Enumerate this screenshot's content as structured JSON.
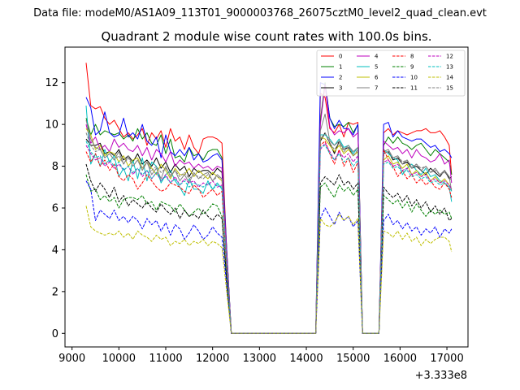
{
  "header": {
    "datafile": "Data file: modeM0/AS1A09_113T01_9000003768_26075cztM0_level2_quad_clean.evt"
  },
  "chart_data": {
    "type": "line",
    "title": "Quadrant 2 module wise count rates with 100.0s bins.",
    "xlabel": "",
    "ylabel": "",
    "x_offset_label": "+3.333e8",
    "xlim": [
      8850,
      17450
    ],
    "ylim": [
      -0.65,
      13.7
    ],
    "x_ticks": [
      9000,
      10000,
      11000,
      12000,
      13000,
      14000,
      15000,
      16000,
      17000
    ],
    "x_tick_labels": [
      "9000",
      "10000",
      "11000",
      "12000",
      "13000",
      "14000",
      "15000",
      "16000",
      "17000"
    ],
    "y_ticks": [
      0,
      2,
      4,
      6,
      8,
      10,
      12
    ],
    "y_tick_labels": [
      "0",
      "2",
      "4",
      "6",
      "8",
      "10",
      "12"
    ],
    "grid": false,
    "legend_position": "top-right",
    "x": [
      9300,
      9400,
      9500,
      9600,
      9700,
      9800,
      9900,
      10000,
      10100,
      10200,
      10300,
      10400,
      10500,
      10600,
      10700,
      10800,
      10900,
      11000,
      11100,
      11200,
      11300,
      11400,
      11500,
      11600,
      11700,
      11800,
      11900,
      12000,
      12100,
      12200,
      12300,
      12400,
      14200,
      14300,
      14400,
      14500,
      14600,
      14700,
      14800,
      14900,
      15000,
      15100,
      15200,
      15550,
      15650,
      15750,
      15850,
      15950,
      16050,
      16150,
      16250,
      16350,
      16450,
      16550,
      16650,
      16750,
      16850,
      16950,
      17050,
      17100
    ],
    "series": [
      {
        "name": "0",
        "color": "#ff0000",
        "dash": "solid",
        "values": [
          12.95,
          10.9,
          10.75,
          10.85,
          10.3,
          10.0,
          10.2,
          9.8,
          9.4,
          9.6,
          9.3,
          9.5,
          9.8,
          9.0,
          9.6,
          9.3,
          9.7,
          8.9,
          9.8,
          9.2,
          9.4,
          8.8,
          9.5,
          8.9,
          8.6,
          9.3,
          9.4,
          9.4,
          9.3,
          9.1,
          4.0,
          0.0,
          0.0,
          11.5,
          11.3,
          9.8,
          9.6,
          10.0,
          9.4,
          10.1,
          10.0,
          10.1,
          0.0,
          0.0,
          9.6,
          9.8,
          9.5,
          9.7,
          9.6,
          9.5,
          9.6,
          9.7,
          9.7,
          9.8,
          9.6,
          9.6,
          9.7,
          9.4,
          9.0,
          7.6
        ]
      },
      {
        "name": "1",
        "color": "#008000",
        "dash": "solid",
        "values": [
          10.3,
          9.5,
          10.0,
          9.5,
          9.7,
          9.6,
          9.5,
          9.6,
          9.3,
          9.5,
          9.2,
          9.8,
          9.3,
          9.6,
          9.1,
          9.0,
          9.5,
          8.6,
          9.3,
          8.4,
          8.5,
          8.2,
          8.9,
          8.5,
          8.6,
          8.3,
          8.7,
          8.8,
          8.8,
          8.4,
          4.0,
          0.0,
          0.0,
          10.2,
          12.0,
          10.3,
          9.9,
          10.0,
          9.9,
          10.1,
          9.6,
          10.0,
          0.0,
          0.0,
          9.0,
          9.4,
          9.1,
          9.4,
          9.1,
          9.0,
          8.8,
          9.0,
          9.1,
          8.8,
          8.5,
          8.8,
          8.6,
          8.4,
          8.2,
          7.6
        ]
      },
      {
        "name": "2",
        "color": "#0000ff",
        "dash": "solid",
        "values": [
          11.3,
          10.8,
          9.5,
          9.7,
          10.6,
          9.6,
          9.4,
          9.5,
          10.3,
          9.4,
          9.6,
          9.3,
          10.0,
          9.2,
          9.0,
          9.4,
          8.4,
          9.5,
          8.7,
          8.5,
          8.8,
          8.5,
          8.9,
          8.3,
          8.6,
          8.2,
          8.3,
          8.5,
          8.6,
          8.3,
          4.0,
          0.0,
          0.0,
          12.0,
          11.9,
          10.3,
          9.8,
          10.2,
          9.8,
          9.8,
          9.5,
          10.0,
          0.0,
          0.0,
          10.0,
          10.1,
          9.4,
          9.7,
          9.4,
          9.3,
          9.2,
          9.3,
          9.3,
          9.1,
          8.9,
          9.0,
          8.7,
          8.8,
          8.6,
          8.4
        ]
      },
      {
        "name": "3",
        "color": "#000000",
        "dash": "solid",
        "values": [
          9.3,
          9.0,
          9.0,
          9.1,
          8.6,
          8.7,
          8.5,
          8.8,
          8.3,
          8.5,
          8.2,
          8.6,
          8.1,
          8.3,
          8.0,
          8.4,
          7.9,
          8.2,
          7.7,
          8.1,
          7.8,
          8.0,
          7.5,
          7.9,
          7.7,
          7.8,
          7.8,
          7.6,
          7.9,
          7.7,
          3.5,
          0.0,
          0.0,
          9.2,
          9.6,
          9.1,
          8.6,
          9.2,
          8.8,
          8.9,
          8.5,
          8.7,
          0.0,
          0.0,
          8.6,
          8.7,
          8.3,
          8.4,
          8.1,
          8.2,
          7.9,
          8.0,
          7.8,
          7.6,
          7.9,
          7.7,
          7.5,
          7.8,
          7.4,
          7.5
        ]
      },
      {
        "name": "4",
        "color": "#bf00bf",
        "dash": "solid",
        "values": [
          10.0,
          9.1,
          9.4,
          8.8,
          9.0,
          8.7,
          9.3,
          8.9,
          9.1,
          8.8,
          8.7,
          9.0,
          8.5,
          8.9,
          8.3,
          8.8,
          8.6,
          8.2,
          8.7,
          8.0,
          8.3,
          8.1,
          8.2,
          7.9,
          8.1,
          7.9,
          8.0,
          7.8,
          8.0,
          7.9,
          3.8,
          0.0,
          0.0,
          10.0,
          11.9,
          9.9,
          9.5,
          9.7,
          9.6,
          9.8,
          9.4,
          9.6,
          0.0,
          0.0,
          9.2,
          9.0,
          8.8,
          8.9,
          8.6,
          8.8,
          8.4,
          8.8,
          8.5,
          8.4,
          8.2,
          8.3,
          8.6,
          8.1,
          8.3,
          7.2
        ]
      },
      {
        "name": "5",
        "color": "#00bfbf",
        "dash": "solid",
        "values": [
          10.9,
          8.1,
          8.6,
          8.0,
          8.8,
          8.2,
          8.5,
          7.5,
          7.9,
          7.3,
          8.3,
          7.4,
          8.4,
          7.3,
          8.2,
          8.0,
          7.2,
          7.6,
          7.8,
          7.3,
          7.0,
          6.6,
          7.4,
          6.9,
          6.9,
          6.7,
          7.3,
          6.9,
          7.2,
          6.9,
          3.0,
          0.0,
          0.0,
          9.5,
          9.5,
          9.3,
          9.0,
          9.3,
          8.9,
          9.0,
          8.6,
          8.9,
          0.0,
          0.0,
          8.8,
          8.6,
          8.4,
          8.3,
          7.6,
          7.9,
          8.1,
          7.8,
          7.6,
          7.9,
          7.5,
          7.6,
          7.3,
          7.2,
          7.0,
          6.3
        ]
      },
      {
        "name": "6",
        "color": "#bfbf00",
        "dash": "solid",
        "values": [
          9.8,
          9.5,
          8.8,
          9.0,
          8.5,
          8.7,
          8.6,
          8.2,
          8.5,
          8.0,
          8.3,
          8.4,
          7.9,
          8.2,
          7.9,
          7.6,
          8.1,
          7.8,
          7.4,
          7.9,
          7.6,
          7.6,
          7.9,
          7.5,
          7.8,
          7.6,
          7.4,
          7.7,
          7.5,
          7.3,
          3.4,
          0.0,
          0.0,
          9.4,
          9.3,
          9.0,
          8.7,
          9.0,
          8.6,
          8.8,
          8.5,
          8.7,
          0.0,
          0.0,
          8.3,
          8.5,
          8.1,
          8.2,
          7.9,
          8.1,
          7.6,
          7.8,
          7.5,
          7.7,
          7.3,
          7.5,
          7.2,
          7.4,
          7.1,
          6.9
        ]
      },
      {
        "name": "7",
        "color": "#808080",
        "dash": "solid",
        "values": [
          10.2,
          9.3,
          8.9,
          8.8,
          8.4,
          8.6,
          8.3,
          8.7,
          8.1,
          8.5,
          8.0,
          8.3,
          7.8,
          8.2,
          7.6,
          7.9,
          7.4,
          8.0,
          7.5,
          7.8,
          7.3,
          7.6,
          7.2,
          7.7,
          7.4,
          7.6,
          7.7,
          7.3,
          7.6,
          7.4,
          3.4,
          0.0,
          0.0,
          9.7,
          10.5,
          9.2,
          9.0,
          9.2,
          8.8,
          9.0,
          8.7,
          8.9,
          0.0,
          0.0,
          8.7,
          8.8,
          8.4,
          8.5,
          8.1,
          8.3,
          7.9,
          8.1,
          7.8,
          8.0,
          7.7,
          7.9,
          7.6,
          7.8,
          7.5,
          6.8
        ]
      },
      {
        "name": "8",
        "color": "#ff0000",
        "dash": "dashed",
        "values": [
          8.7,
          8.2,
          8.6,
          8.0,
          8.3,
          7.8,
          8.1,
          7.5,
          7.3,
          7.6,
          7.4,
          6.9,
          7.2,
          7.6,
          7.3,
          7.0,
          6.8,
          6.9,
          7.2,
          7.1,
          7.0,
          6.8,
          6.7,
          7.1,
          6.9,
          6.5,
          6.7,
          6.9,
          6.6,
          6.8,
          3.0,
          0.0,
          0.0,
          9.0,
          9.2,
          8.6,
          8.1,
          8.8,
          8.0,
          8.4,
          7.7,
          8.2,
          0.0,
          0.0,
          8.8,
          8.3,
          8.0,
          7.5,
          7.8,
          7.4,
          7.6,
          7.2,
          7.4,
          7.1,
          7.3,
          7.0,
          6.9,
          7.2,
          6.9,
          6.5
        ]
      },
      {
        "name": "9",
        "color": "#008000",
        "dash": "dashed",
        "values": [
          7.6,
          6.8,
          6.9,
          6.4,
          6.6,
          6.3,
          6.5,
          6.0,
          6.4,
          6.5,
          6.5,
          6.4,
          6.6,
          6.2,
          6.3,
          5.9,
          6.3,
          6.2,
          6.1,
          5.8,
          6.2,
          5.9,
          5.6,
          5.8,
          6.0,
          5.7,
          5.9,
          6.2,
          6.1,
          5.6,
          2.5,
          0.0,
          0.0,
          7.0,
          7.2,
          6.8,
          6.5,
          7.1,
          6.8,
          7.0,
          6.6,
          6.9,
          0.0,
          0.0,
          6.6,
          6.4,
          6.2,
          6.4,
          6.0,
          6.3,
          5.8,
          6.2,
          5.9,
          5.6,
          5.9,
          5.7,
          5.9,
          5.7,
          5.8,
          5.5
        ]
      },
      {
        "name": "10",
        "color": "#0000ff",
        "dash": "dashed",
        "values": [
          7.3,
          6.9,
          5.4,
          5.9,
          5.7,
          5.5,
          5.9,
          5.4,
          5.6,
          5.3,
          5.6,
          5.4,
          5.0,
          5.5,
          5.2,
          5.4,
          4.9,
          5.3,
          4.7,
          5.2,
          5.0,
          4.5,
          4.8,
          5.2,
          4.9,
          4.5,
          4.7,
          5.1,
          4.8,
          4.6,
          2.3,
          0.0,
          0.0,
          5.5,
          6.0,
          5.6,
          5.2,
          5.8,
          5.4,
          5.6,
          5.1,
          5.4,
          0.0,
          0.0,
          5.4,
          5.7,
          5.2,
          5.4,
          5.0,
          5.3,
          4.9,
          5.1,
          4.7,
          5.0,
          4.8,
          5.1,
          4.6,
          5.0,
          4.8,
          5.0
        ]
      },
      {
        "name": "11",
        "color": "#000000",
        "dash": "dashed",
        "values": [
          8.1,
          7.3,
          6.8,
          7.2,
          6.9,
          6.5,
          7.0,
          6.3,
          6.6,
          6.1,
          6.4,
          6.2,
          6.0,
          6.3,
          6.0,
          5.8,
          6.2,
          5.9,
          5.7,
          6.0,
          5.5,
          5.9,
          5.6,
          5.7,
          5.5,
          5.9,
          5.6,
          5.4,
          5.7,
          5.5,
          2.6,
          0.0,
          0.0,
          7.2,
          7.5,
          7.3,
          7.1,
          7.6,
          7.1,
          7.3,
          6.9,
          7.2,
          0.0,
          0.0,
          7.0,
          6.7,
          6.5,
          6.7,
          6.3,
          6.6,
          6.1,
          6.4,
          6.0,
          6.3,
          5.8,
          6.1,
          5.7,
          6.0,
          5.4,
          5.5
        ]
      },
      {
        "name": "12",
        "color": "#bf00bf",
        "dash": "dashed",
        "values": [
          9.0,
          8.6,
          8.3,
          8.4,
          8.0,
          8.2,
          7.9,
          8.1,
          7.8,
          8.0,
          7.6,
          7.9,
          7.5,
          7.8,
          7.4,
          7.7,
          7.3,
          7.6,
          7.2,
          7.5,
          7.1,
          7.4,
          7.2,
          7.3,
          7.0,
          7.2,
          7.1,
          7.3,
          7.0,
          7.1,
          3.3,
          0.0,
          0.0,
          8.8,
          9.1,
          8.7,
          8.3,
          8.7,
          8.4,
          8.6,
          8.2,
          8.5,
          0.0,
          0.0,
          8.2,
          8.3,
          8.0,
          8.1,
          7.8,
          7.9,
          7.6,
          7.7,
          7.5,
          7.6,
          7.3,
          7.4,
          7.2,
          7.3,
          7.1,
          6.9
        ]
      },
      {
        "name": "13",
        "color": "#00bfbf",
        "dash": "dashed",
        "values": [
          9.2,
          8.7,
          8.4,
          8.5,
          8.1,
          8.3,
          8.0,
          8.2,
          7.8,
          8.0,
          7.7,
          7.9,
          7.6,
          7.8,
          7.4,
          7.7,
          7.3,
          7.5,
          7.2,
          7.4,
          7.1,
          7.3,
          7.0,
          7.2,
          7.1,
          7.0,
          7.2,
          6.9,
          7.1,
          7.0,
          3.2,
          0.0,
          0.0,
          8.9,
          9.0,
          8.6,
          8.3,
          8.6,
          8.2,
          8.4,
          8.0,
          8.3,
          0.0,
          0.0,
          8.1,
          8.2,
          7.9,
          8.0,
          7.7,
          7.8,
          7.5,
          7.6,
          7.4,
          7.5,
          7.2,
          7.3,
          7.1,
          7.2,
          7.0,
          6.8
        ]
      },
      {
        "name": "14",
        "color": "#bfbf00",
        "dash": "dashed",
        "values": [
          6.1,
          5.1,
          4.9,
          4.8,
          4.7,
          4.8,
          4.7,
          4.9,
          4.6,
          4.8,
          4.5,
          4.9,
          4.7,
          4.6,
          4.4,
          4.7,
          4.5,
          4.6,
          4.2,
          4.4,
          4.3,
          4.5,
          4.2,
          4.4,
          4.3,
          4.5,
          4.2,
          4.4,
          4.3,
          4.1,
          2.0,
          0.0,
          0.0,
          5.5,
          5.2,
          5.1,
          5.3,
          5.7,
          5.4,
          5.6,
          5.2,
          5.5,
          0.0,
          0.0,
          4.9,
          4.8,
          4.6,
          4.9,
          4.5,
          4.8,
          4.4,
          4.6,
          4.2,
          4.5,
          4.3,
          4.5,
          4.6,
          4.6,
          4.4,
          3.9
        ]
      },
      {
        "name": "15",
        "color": "#808080",
        "dash": "dashed",
        "values": [
          9.6,
          9.0,
          8.7,
          8.8,
          8.4,
          8.6,
          8.3,
          8.5,
          8.1,
          8.4,
          8.0,
          8.3,
          7.9,
          8.2,
          7.8,
          8.0,
          7.7,
          7.9,
          7.6,
          7.8,
          7.5,
          7.7,
          7.4,
          7.6,
          7.5,
          7.4,
          7.6,
          7.3,
          7.5,
          7.4,
          3.4,
          0.0,
          0.0,
          9.3,
          9.6,
          9.1,
          8.8,
          9.1,
          8.7,
          8.9,
          8.5,
          8.8,
          0.0,
          0.0,
          8.6,
          8.7,
          8.4,
          8.5,
          8.2,
          8.3,
          8.0,
          8.1,
          7.9,
          8.0,
          7.7,
          7.8,
          7.6,
          7.7,
          7.5,
          7.3
        ]
      }
    ]
  }
}
